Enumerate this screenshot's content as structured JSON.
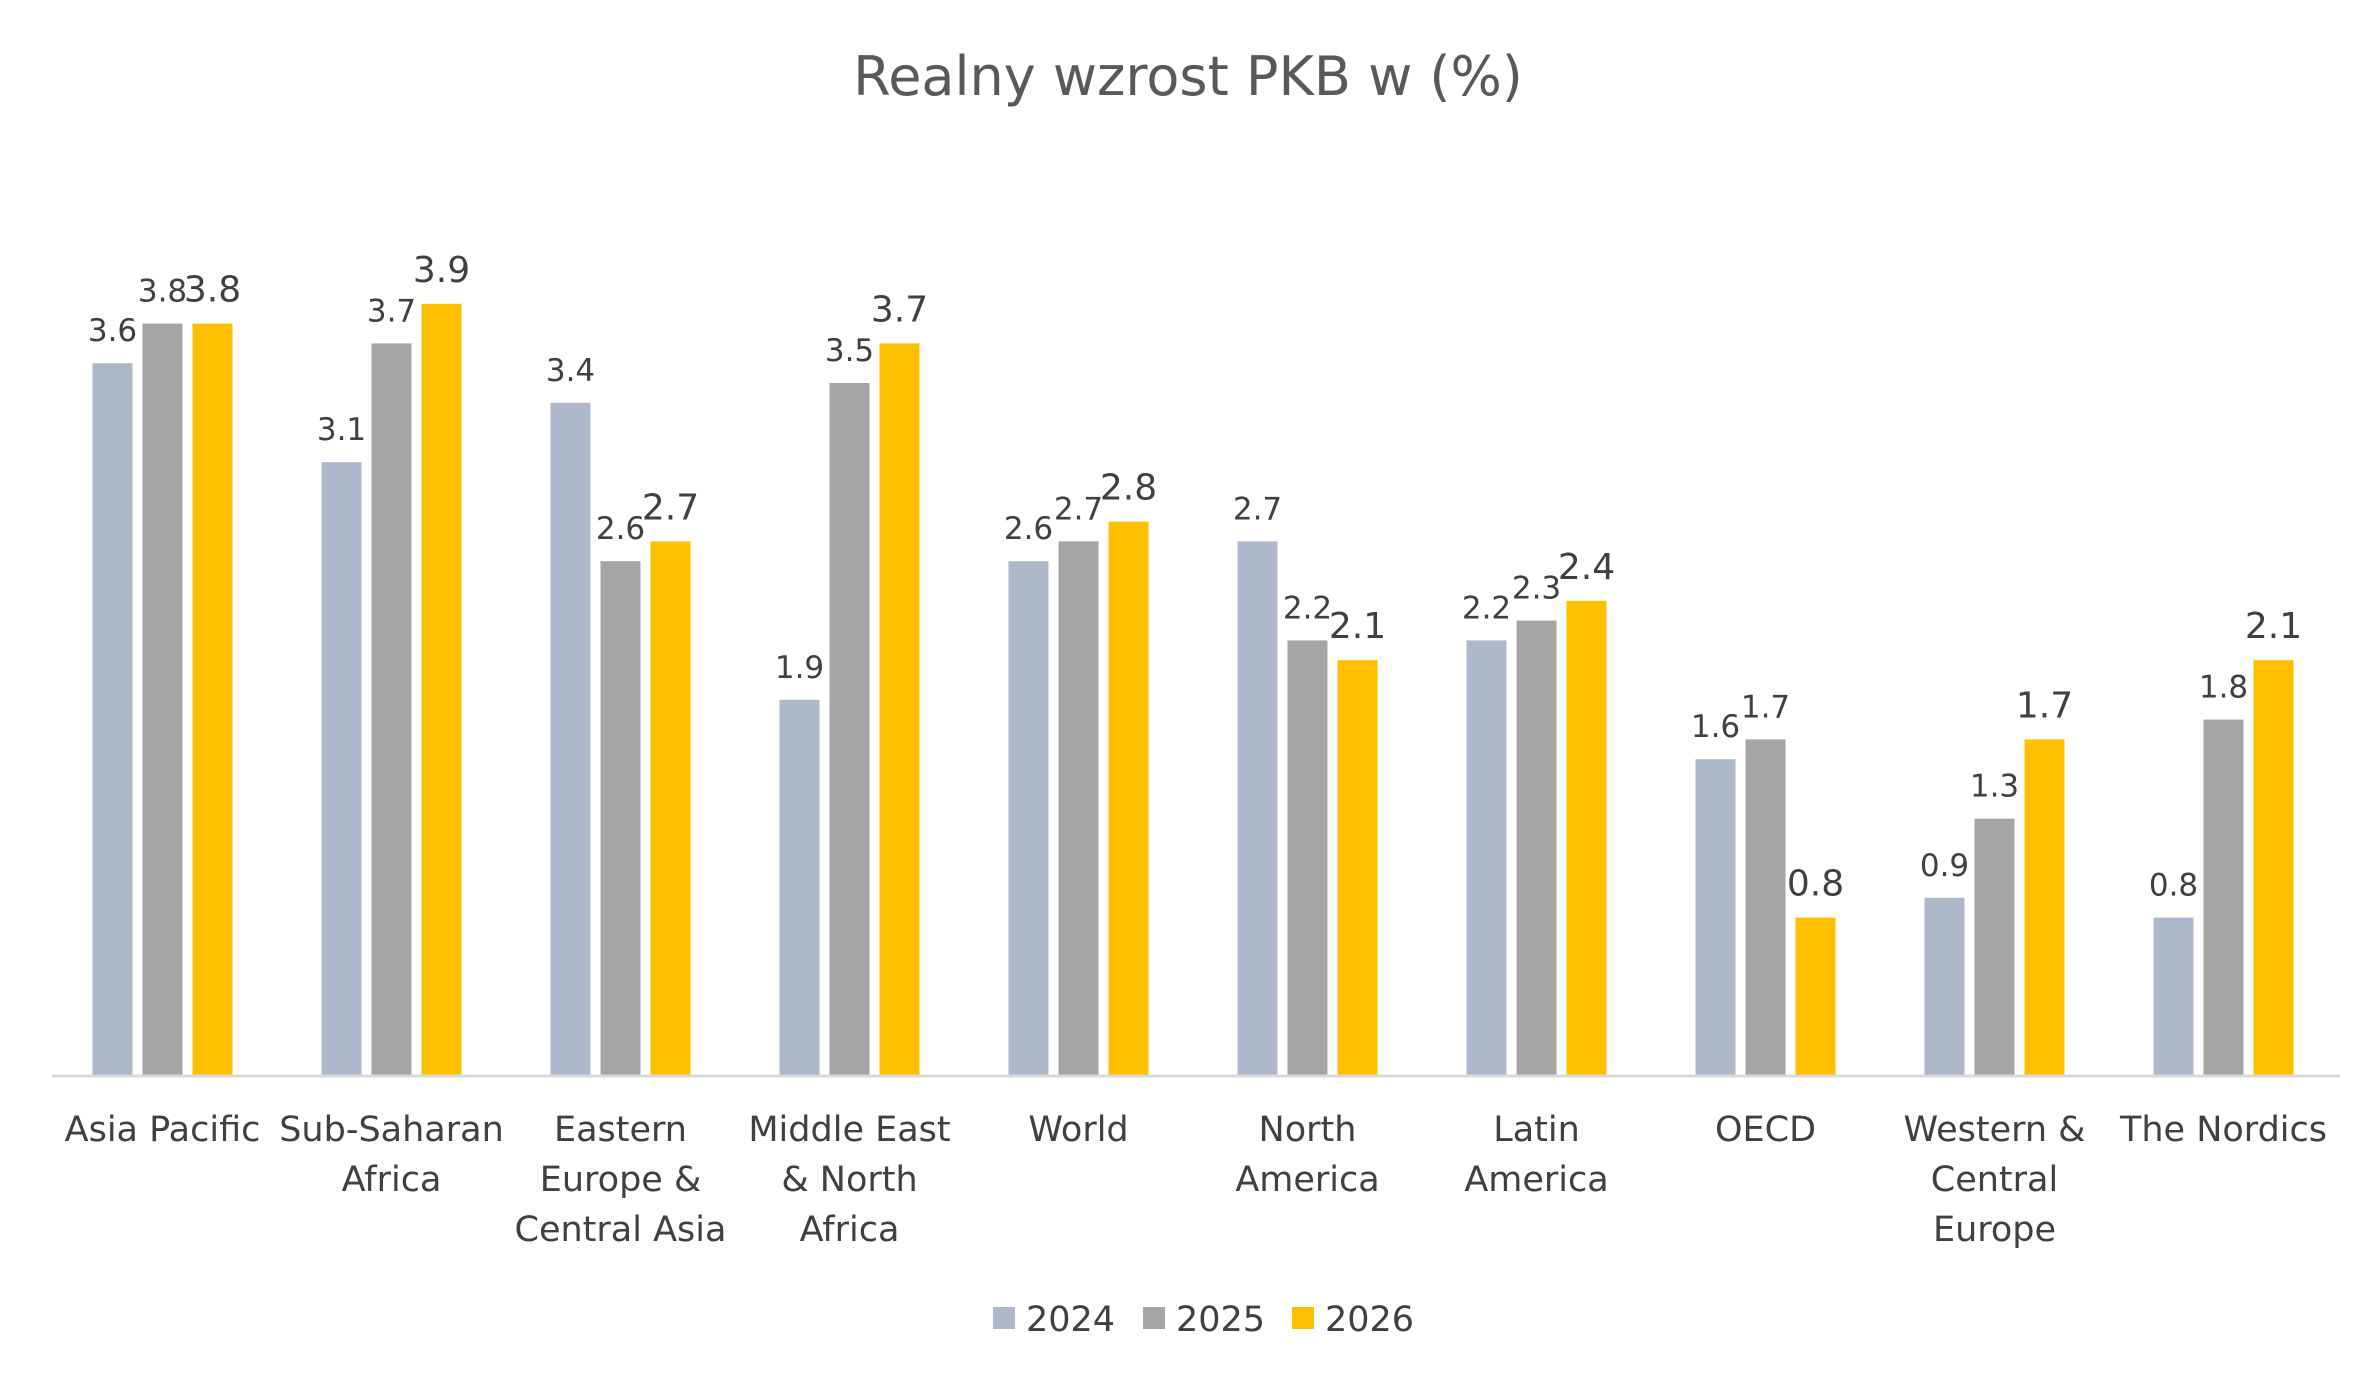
{
  "chart_data": {
    "type": "bar",
    "title": "Realny wzrost PKB w (%)",
    "xlabel": "",
    "ylabel": "",
    "ylim": [
      0,
      4.2
    ],
    "grid": false,
    "legend_position": "bottom",
    "categories": [
      [
        "Asia Pacific"
      ],
      [
        "Sub-Saharan",
        "Africa"
      ],
      [
        "Eastern",
        "Europe &",
        "Central Asia"
      ],
      [
        "Middle East",
        "& North",
        "Africa"
      ],
      [
        "World"
      ],
      [
        "North",
        "America"
      ],
      [
        "Latin",
        "America"
      ],
      [
        "OECD"
      ],
      [
        "Western &",
        "Central",
        "Europe"
      ],
      [
        "The Nordics"
      ]
    ],
    "series": [
      {
        "name": "2024",
        "color": "#adb9ca",
        "values": [
          3.6,
          3.1,
          3.4,
          1.9,
          2.6,
          2.7,
          2.2,
          1.6,
          0.9,
          0.8
        ]
      },
      {
        "name": "2025",
        "color": "#a5a5a5",
        "values": [
          3.8,
          3.7,
          2.6,
          3.5,
          2.7,
          2.2,
          2.3,
          1.7,
          1.3,
          1.8
        ]
      },
      {
        "name": "2026",
        "color": "#ffc000",
        "values": [
          3.8,
          3.9,
          2.7,
          3.7,
          2.8,
          2.1,
          2.4,
          0.8,
          1.7,
          2.1
        ]
      }
    ]
  }
}
